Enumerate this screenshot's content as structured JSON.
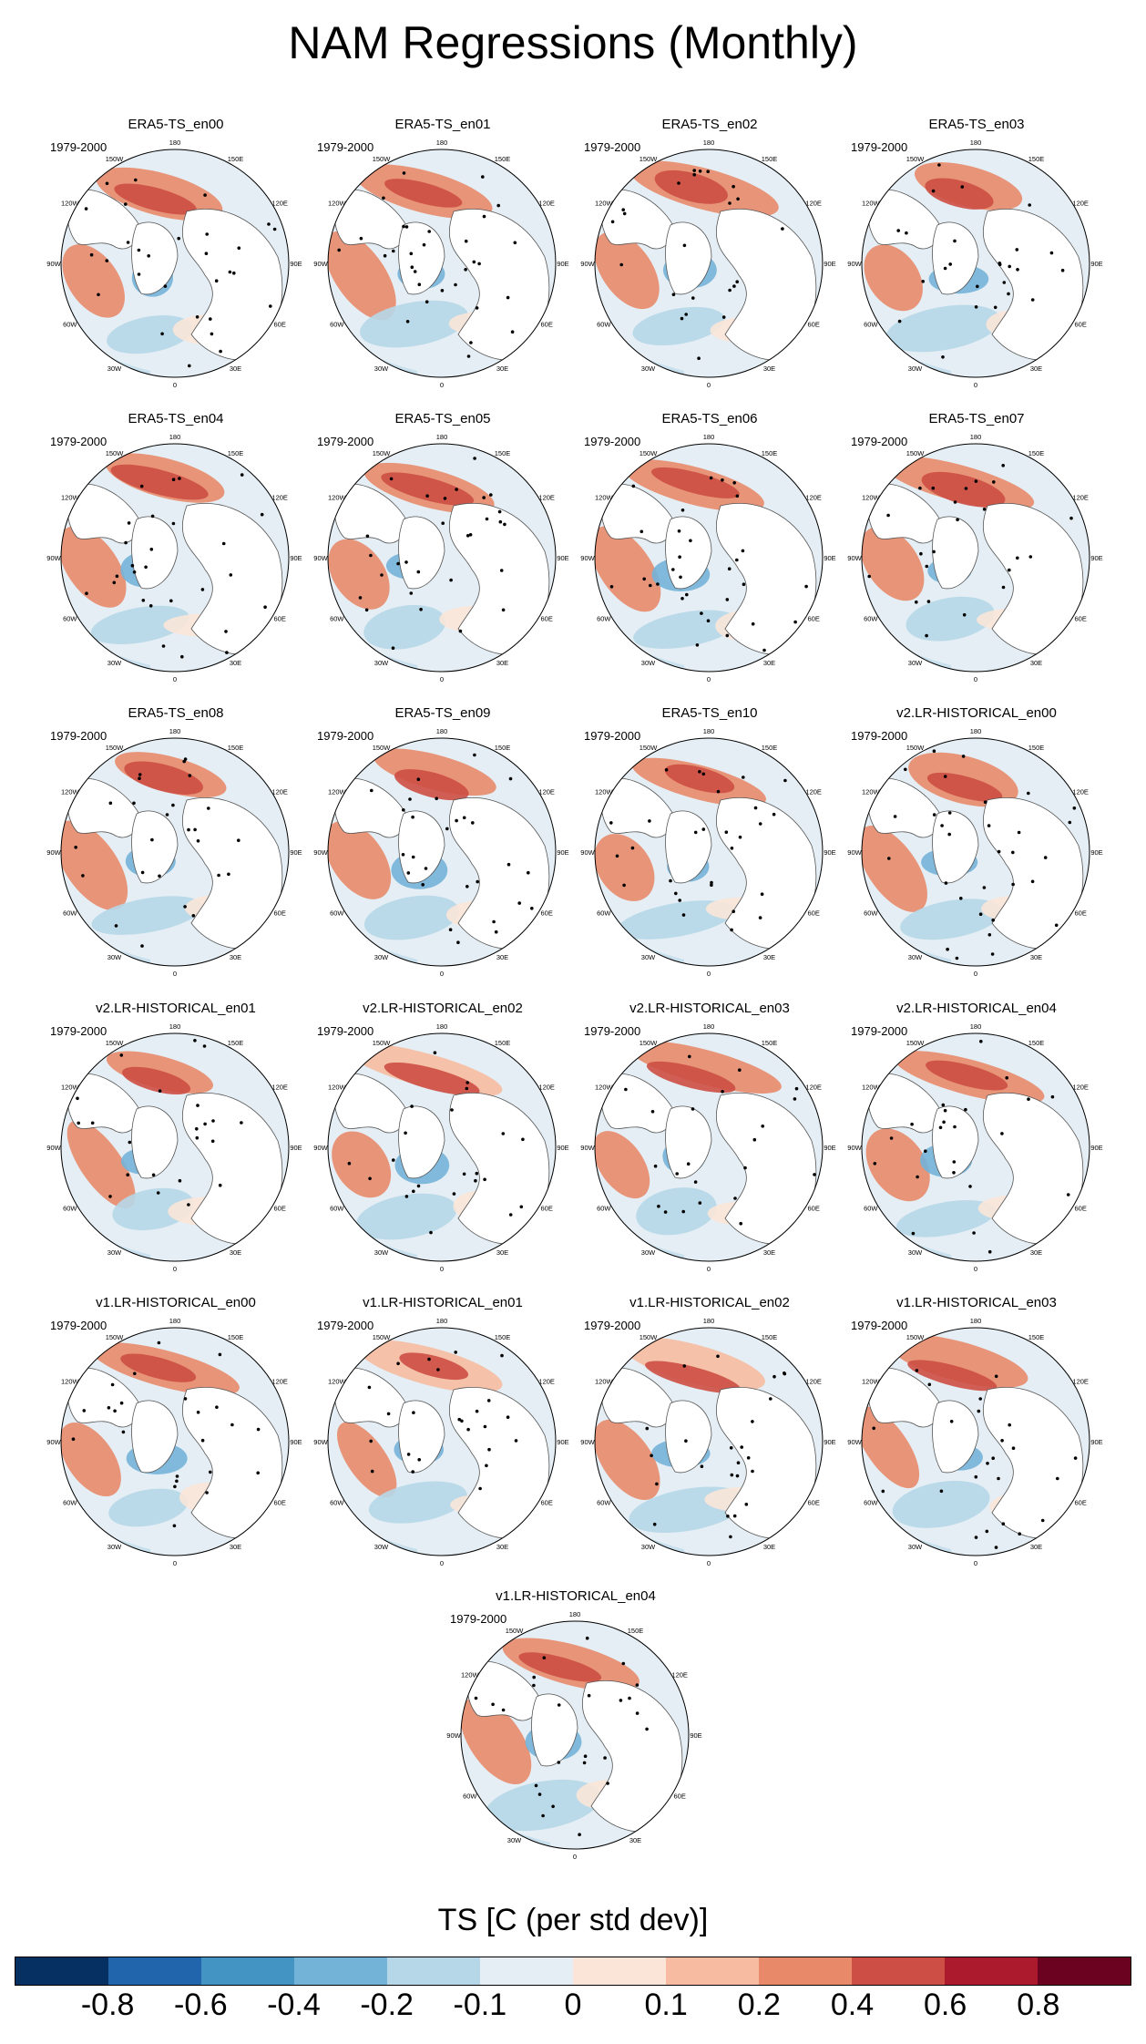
{
  "title": "NAM Regressions (Monthly)",
  "period_label": "1979-2000",
  "longitude_labels": [
    "180",
    "150E",
    "120E",
    "90E",
    "60E",
    "30E",
    "0",
    "30W",
    "60W",
    "90W",
    "120W",
    "150W"
  ],
  "panels": [
    {
      "title": "ERA5-TS_en00"
    },
    {
      "title": "ERA5-TS_en01"
    },
    {
      "title": "ERA5-TS_en02"
    },
    {
      "title": "ERA5-TS_en03"
    },
    {
      "title": "ERA5-TS_en04"
    },
    {
      "title": "ERA5-TS_en05"
    },
    {
      "title": "ERA5-TS_en06"
    },
    {
      "title": "ERA5-TS_en07"
    },
    {
      "title": "ERA5-TS_en08"
    },
    {
      "title": "ERA5-TS_en09"
    },
    {
      "title": "ERA5-TS_en10"
    },
    {
      "title": "v2.LR-HISTORICAL_en00"
    },
    {
      "title": "v2.LR-HISTORICAL_en01"
    },
    {
      "title": "v2.LR-HISTORICAL_en02"
    },
    {
      "title": "v2.LR-HISTORICAL_en03"
    },
    {
      "title": "v2.LR-HISTORICAL_en04"
    },
    {
      "title": "v1.LR-HISTORICAL_en00"
    },
    {
      "title": "v1.LR-HISTORICAL_en01"
    },
    {
      "title": "v1.LR-HISTORICAL_en02"
    },
    {
      "title": "v1.LR-HISTORICAL_en03"
    },
    {
      "title": "v1.LR-HISTORICAL_en04"
    }
  ],
  "colorbar": {
    "title": "TS [C (per std dev)]",
    "labels": [
      "-0.8",
      "-0.6",
      "-0.4",
      "-0.2",
      "-0.1",
      "0",
      "0.1",
      "0.2",
      "0.4",
      "0.6",
      "0.8"
    ],
    "colors": [
      "#053061",
      "#2166ac",
      "#4393c3",
      "#74b3d8",
      "#b6d7e8",
      "#e4eef4",
      "#fbe5d9",
      "#f6bba0",
      "#e8896a",
      "#cd4e44",
      "#ac1a2d",
      "#6a0220"
    ]
  },
  "style_colors": {
    "land": "#ffffff",
    "coastline": "#555555",
    "warm_anomaly": "#e8896a",
    "strong_warm": "#cd4e44",
    "cool_anomaly": "#74b3d8",
    "stippling": "#000000"
  }
}
